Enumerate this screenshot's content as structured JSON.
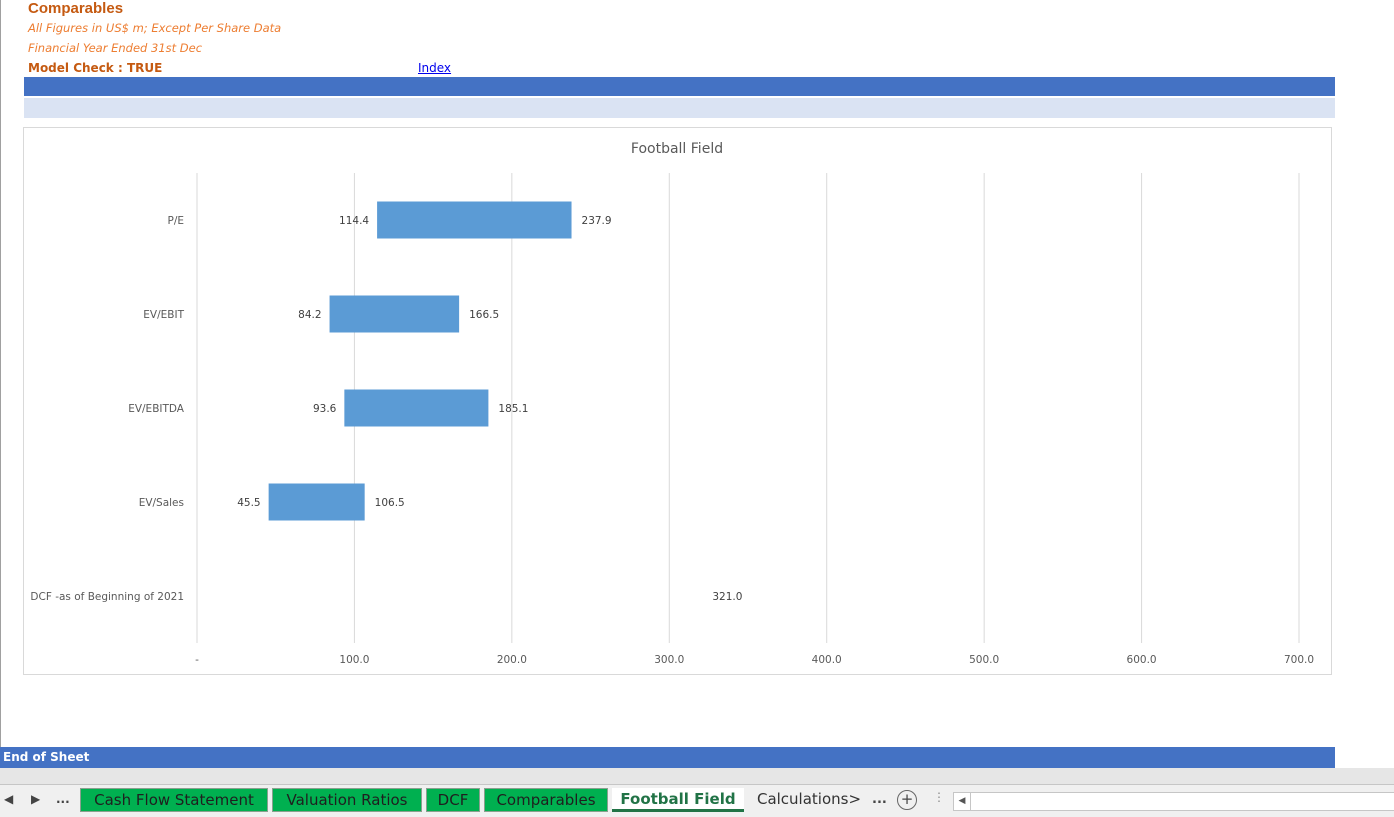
{
  "header": {
    "title": "Comparables",
    "subtitle1": "All Figures in US$ m; Except Per Share Data",
    "subtitle2": "Financial Year Ended 31st Dec",
    "model_check": "Model Check : TRUE",
    "index_link": "Index"
  },
  "footer": {
    "end_text": "End of Sheet"
  },
  "chart_data": {
    "type": "bar",
    "orientation": "horizontal-floating",
    "title": "Football Field",
    "categories": [
      "P/E",
      "EV/EBIT",
      "EV/EBITDA",
      "EV/Sales",
      "DCF -as of Beginning of 2021"
    ],
    "series": [
      {
        "low": 114.4,
        "high": 237.9
      },
      {
        "low": 84.2,
        "high": 166.5
      },
      {
        "low": 93.6,
        "high": 185.1
      },
      {
        "low": 45.5,
        "high": 106.5
      },
      {
        "low": null,
        "high": 321.0
      }
    ],
    "low_labels": [
      "114.4",
      "84.2",
      "93.6",
      "45.5",
      ""
    ],
    "high_labels": [
      "237.9",
      "166.5",
      "185.1",
      "106.5",
      "321.0"
    ],
    "xlim": [
      0,
      700
    ],
    "xticks": [
      0,
      100,
      200,
      300,
      400,
      500,
      600,
      700
    ],
    "xtick_labels": [
      "-",
      "100.0",
      "200.0",
      "300.0",
      "400.0",
      "500.0",
      "600.0",
      "700.0"
    ],
    "grid": true,
    "bar_color": "#5b9bd5"
  },
  "tabs": {
    "nav_prev": "◀",
    "nav_next": "▶",
    "nav_more": "...",
    "items": [
      {
        "label": "Cash Flow Statement"
      },
      {
        "label": "Valuation Ratios"
      },
      {
        "label": "DCF"
      },
      {
        "label": "Comparables"
      },
      {
        "label": "Football Field"
      },
      {
        "label": "Calculations>"
      }
    ],
    "more": "...",
    "add": "+"
  },
  "colors": {
    "accent": "#4472c4",
    "accent_light": "#dae3f3",
    "title_orange": "#c55a11",
    "subtitle_orange": "#ed7d31",
    "tab_green": "#00b050"
  }
}
